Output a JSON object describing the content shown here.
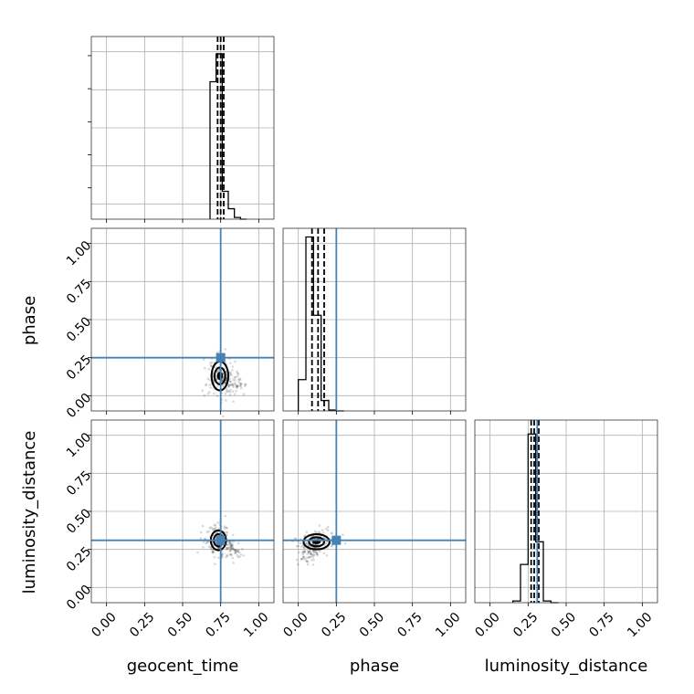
{
  "chart_data": {
    "type": "corner",
    "parameters": [
      "geocent_time",
      "phase",
      "luminosity_distance"
    ],
    "axis_labels": {
      "x": [
        "geocent_time",
        "phase",
        "luminosity_distance"
      ],
      "y": [
        "",
        "phase",
        "luminosity_distance"
      ]
    },
    "range": [
      -0.1,
      1.1
    ],
    "ticks": [
      0.0,
      0.25,
      0.5,
      0.75,
      1.0
    ],
    "tick_labels": [
      "0.00",
      "0.25",
      "0.50",
      "0.75",
      "1.00"
    ],
    "truths": [
      0.75,
      0.25,
      0.31
    ],
    "truth_color": "#4682b4",
    "quantiles": [
      [
        0.73,
        0.75,
        0.77
      ],
      [
        0.09,
        0.13,
        0.17
      ],
      [
        0.27,
        0.29,
        0.32
      ]
    ],
    "histograms": [
      {
        "edges": [
          0.68,
          0.72,
          0.76,
          0.8,
          0.84,
          0.88,
          0.92
        ],
        "density": [
          0.79,
          0.95,
          0.16,
          0.06,
          0.01,
          0.0
        ]
      },
      {
        "edges": [
          0.0,
          0.05,
          0.1,
          0.15,
          0.2,
          0.25,
          0.3
        ],
        "density": [
          0.18,
          1.0,
          0.55,
          0.06,
          0.005,
          0.0
        ]
      },
      {
        "edges": [
          0.15,
          0.2,
          0.25,
          0.3,
          0.35,
          0.4,
          0.45
        ],
        "density": [
          0.01,
          0.22,
          0.97,
          0.35,
          0.01,
          0.0
        ]
      }
    ],
    "contours": [
      {
        "x": "geocent_time",
        "y": "phase",
        "center": [
          0.745,
          0.13
        ],
        "levels": [
          {
            "rx": 0.035,
            "ry": 0.055
          },
          {
            "rx": 0.055,
            "ry": 0.095
          }
        ],
        "tail": [
          0.9,
          0.04
        ]
      },
      {
        "x": "geocent_time",
        "y": "luminosity_distance",
        "center": [
          0.735,
          0.31
        ],
        "levels": [
          {
            "rx": 0.03,
            "ry": 0.04
          },
          {
            "rx": 0.05,
            "ry": 0.065
          }
        ],
        "tail": [
          0.88,
          0.22
        ]
      },
      {
        "x": "phase",
        "y": "luminosity_distance",
        "center": [
          0.12,
          0.3
        ],
        "levels": [
          {
            "rx": 0.05,
            "ry": 0.03
          },
          {
            "rx": 0.085,
            "ry": 0.05
          }
        ],
        "tail": [
          0.04,
          0.18
        ]
      }
    ],
    "grid": true,
    "legend": "none"
  }
}
